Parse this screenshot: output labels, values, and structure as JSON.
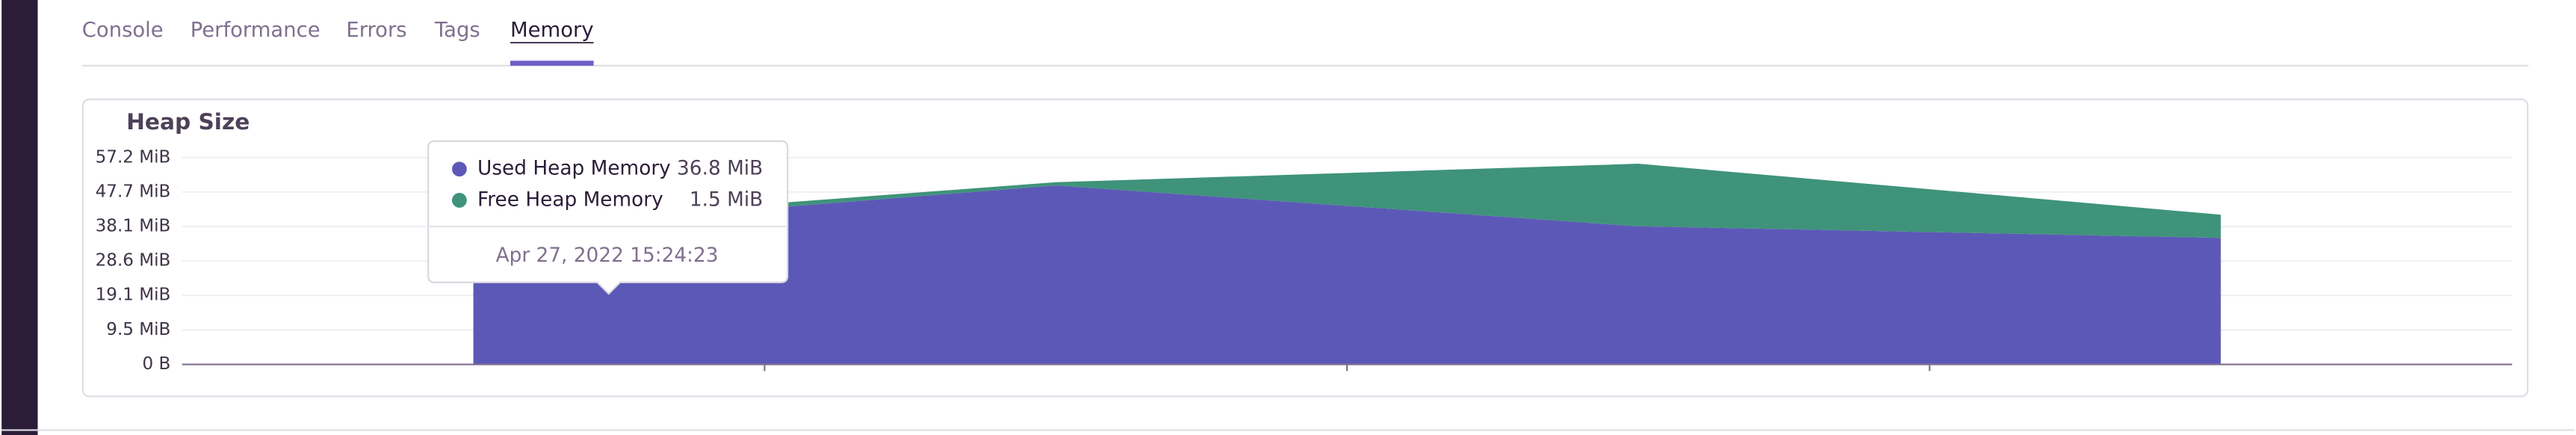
{
  "tabs": [
    "Console",
    "Performance",
    "Errors",
    "Tags",
    "Memory"
  ],
  "active_tab": 4,
  "chart_data": {
    "type": "area",
    "stacked": true,
    "title": "Heap Size",
    "categories": [
      null,
      null,
      null,
      null
    ],
    "series": [
      {
        "name": "Used Heap Memory",
        "color": "#5c58b8",
        "values": [
          36.8,
          49.5,
          38.2,
          35
        ],
        "value_labels": [
          "36.8 MiB",
          null,
          null,
          null
        ]
      },
      {
        "name": "Free Heap Memory",
        "color": "#3f937a",
        "values": [
          1.5,
          0.9,
          17.3,
          6.4
        ],
        "value_labels": [
          "1.5 MiB",
          null,
          null,
          null
        ]
      }
    ],
    "ylim": [
      0,
      57.2
    ],
    "yticks": [
      {
        "value": 0,
        "label": "0 B"
      },
      {
        "value": 9.5,
        "label": "9.5 MiB"
      },
      {
        "value": 19.1,
        "label": "19.1 MiB"
      },
      {
        "value": 28.6,
        "label": "28.6 MiB"
      },
      {
        "value": 38.1,
        "label": "38.1 MiB"
      },
      {
        "value": 47.7,
        "label": "47.7 MiB"
      },
      {
        "value": 57.2,
        "label": "57.2 MiB"
      }
    ],
    "grid": true,
    "tooltip": {
      "point": 0,
      "date": "Apr 27, 2022 15:24:23"
    }
  }
}
